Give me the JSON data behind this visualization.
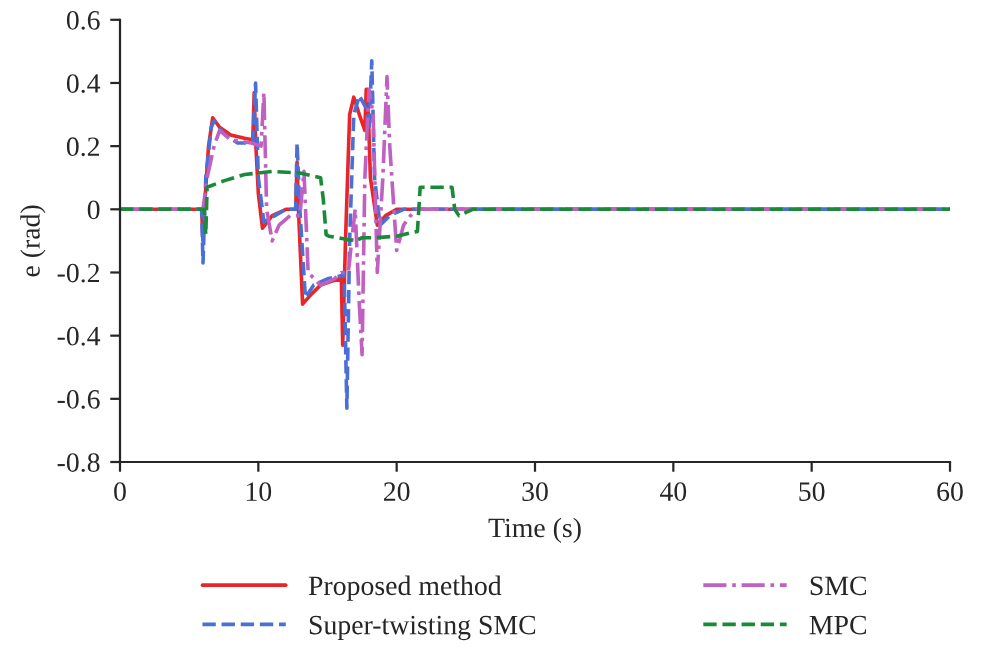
{
  "chart_data": {
    "type": "line",
    "xlabel": "Time (s)",
    "ylabel": "e (rad)",
    "xlim": [
      0,
      60
    ],
    "xticks": [
      0,
      10,
      20,
      30,
      40,
      50,
      60
    ],
    "ylim": [
      -0.8,
      0.6
    ],
    "yticks": [
      -0.8,
      -0.6,
      -0.4,
      -0.2,
      0,
      0.2,
      0.4,
      0.6
    ],
    "grid": false,
    "legend": "bottom",
    "series": [
      {
        "name": "Proposed method",
        "color": "#e8262a",
        "line_style": "solid",
        "x": [
          0,
          5.9,
          6.0,
          6.1,
          6.4,
          6.7,
          7.2,
          8.0,
          9.0,
          9.6,
          9.7,
          9.8,
          10.0,
          10.3,
          11.0,
          12.0,
          12.7,
          12.8,
          12.9,
          13.2,
          13.8,
          14.5,
          15.5,
          16.0,
          16.1,
          16.3,
          16.6,
          16.9,
          17.3,
          17.7,
          17.8,
          17.9,
          18.1,
          18.6,
          19.2,
          20.0,
          25,
          60
        ],
        "values": [
          0,
          0,
          -0.1,
          0.0,
          0.2,
          0.29,
          0.26,
          0.235,
          0.225,
          0.22,
          0.37,
          0.22,
          0.05,
          -0.06,
          -0.02,
          0,
          0,
          0.15,
          0,
          -0.3,
          -0.27,
          -0.24,
          -0.225,
          -0.22,
          -0.43,
          -0.1,
          0.3,
          0.355,
          0.3,
          0.25,
          0.38,
          0.38,
          0.1,
          -0.05,
          -0.02,
          0,
          0,
          0
        ]
      },
      {
        "name": "Super-twisting SMC",
        "color": "#4a6fd6",
        "line_style": "dashed",
        "marker": "none",
        "x": [
          0,
          5.9,
          6.0,
          6.2,
          6.6,
          6.8,
          7.5,
          8.5,
          9.6,
          9.8,
          10.0,
          10.4,
          11.2,
          12.0,
          12.7,
          12.8,
          13.0,
          13.4,
          14.0,
          15.0,
          16.0,
          16.2,
          16.4,
          16.6,
          16.9,
          17.3,
          17.8,
          18.0,
          18.2,
          18.4,
          18.8,
          19.5,
          20.5,
          25,
          60
        ],
        "values": [
          0,
          0,
          -0.17,
          0.1,
          0.26,
          0.28,
          0.24,
          0.21,
          0.21,
          0.4,
          0.1,
          -0.04,
          -0.02,
          0,
          0,
          0.21,
          0,
          -0.28,
          -0.24,
          -0.22,
          -0.21,
          -0.2,
          -0.63,
          -0.1,
          0.3,
          0.36,
          0.32,
          0.25,
          0.47,
          0.1,
          -0.05,
          -0.02,
          0,
          0,
          0
        ]
      },
      {
        "name": "SMC",
        "color": "#c060c0",
        "line_style": "dashdot",
        "marker": "none",
        "x": [
          0,
          6.0,
          6.3,
          6.8,
          7.2,
          8.0,
          9.5,
          10.2,
          10.4,
          10.6,
          11.0,
          11.5,
          12.3,
          13.0,
          13.3,
          13.6,
          14.5,
          15.5,
          16.0,
          16.5,
          17.0,
          17.3,
          17.5,
          17.7,
          18.0,
          18.3,
          18.6,
          19.0,
          19.3,
          19.5,
          20.0,
          20.5,
          21.0,
          21.5,
          25,
          60
        ],
        "values": [
          0,
          0,
          0.1,
          0.2,
          0.25,
          0.22,
          0.21,
          0.2,
          0.37,
          0.0,
          -0.1,
          -0.05,
          -0.02,
          -0.02,
          0.12,
          -0.2,
          -0.24,
          -0.22,
          -0.2,
          -0.2,
          0.0,
          -0.3,
          -0.46,
          0.1,
          0.38,
          0.3,
          -0.2,
          0.1,
          0.42,
          0.2,
          -0.13,
          -0.05,
          -0.02,
          0,
          0,
          0
        ]
      },
      {
        "name": "MPC",
        "color": "#1a8a3a",
        "line_style": "dashed",
        "x": [
          0,
          6.1,
          6.2,
          6.3,
          7.5,
          9.0,
          11.0,
          13.0,
          14.5,
          14.7,
          14.9,
          15.1,
          17.0,
          17.5,
          18.5,
          20.0,
          21.5,
          21.6,
          21.7,
          24.0,
          24.2,
          24.5,
          25.5,
          60
        ],
        "values": [
          0,
          0,
          -0.08,
          0.07,
          0.09,
          0.11,
          0.12,
          0.115,
          0.1,
          0.03,
          -0.08,
          -0.085,
          -0.1,
          -0.09,
          -0.09,
          -0.085,
          -0.07,
          0.0,
          0.07,
          0.07,
          0.0,
          -0.02,
          0,
          0
        ]
      }
    ]
  }
}
